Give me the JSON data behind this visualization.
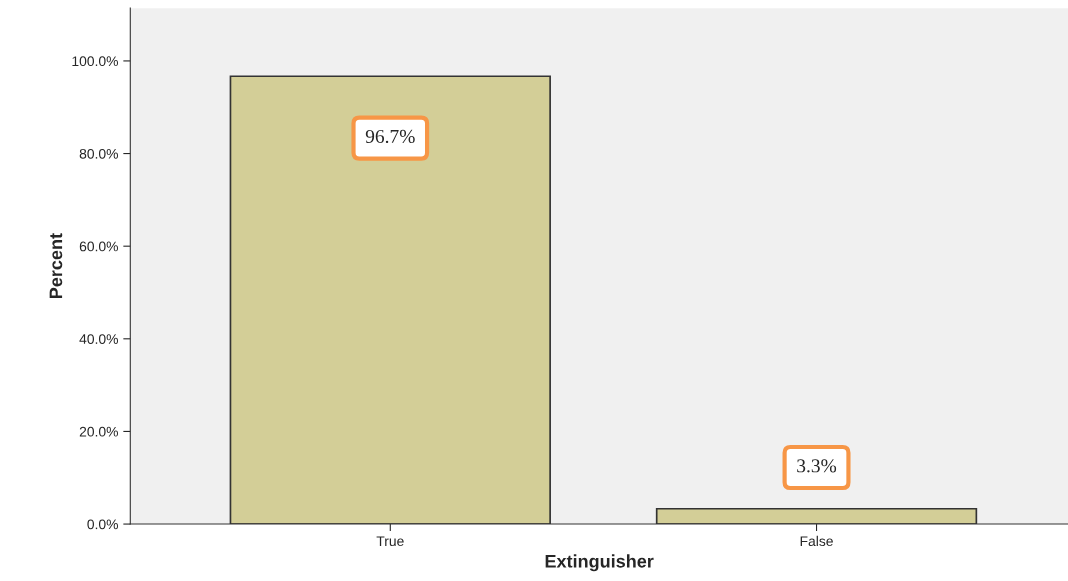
{
  "chart_data": {
    "type": "bar",
    "xlabel": "Extinguisher",
    "ylabel": "Percent",
    "categories": [
      "True",
      "False"
    ],
    "values": [
      96.7,
      3.3
    ],
    "value_labels": [
      "96.7%",
      "3.3%"
    ],
    "color": "#d3ce97",
    "ylim": [
      0,
      111.4
    ],
    "yticks": [
      {
        "value": 0,
        "label": "0.0%"
      },
      {
        "value": 20,
        "label": "20.0%"
      },
      {
        "value": 40,
        "label": "40.0%"
      },
      {
        "value": 60,
        "label": "60.0%"
      },
      {
        "value": 80,
        "label": "80.0%"
      },
      {
        "value": 100,
        "label": "100.0%"
      }
    ],
    "grid": false
  }
}
